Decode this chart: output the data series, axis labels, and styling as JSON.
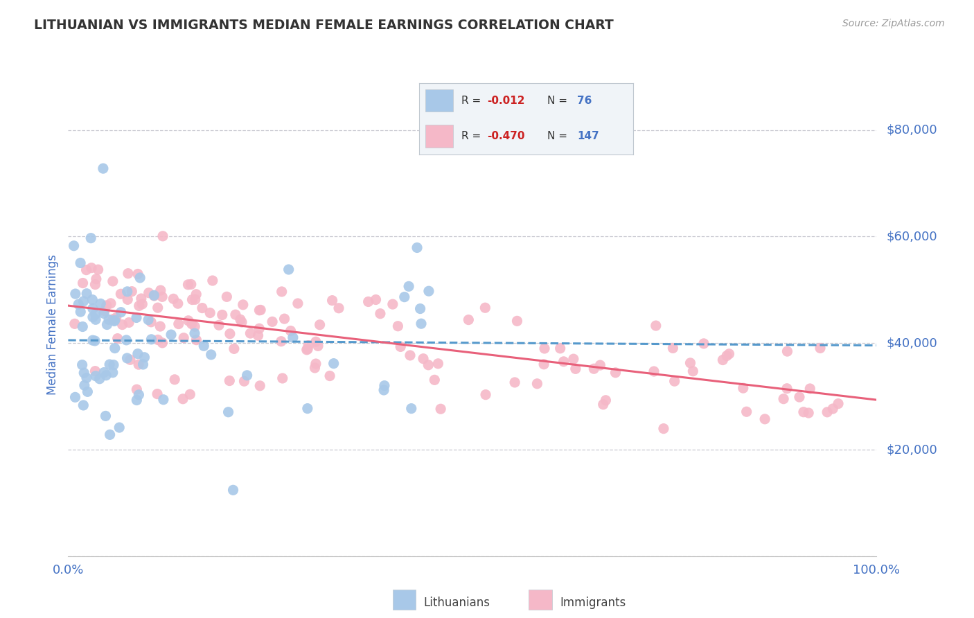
{
  "title": "LITHUANIAN VS IMMIGRANTS MEDIAN FEMALE EARNINGS CORRELATION CHART",
  "source_text": "Source: ZipAtlas.com",
  "ylabel": "Median Female Earnings",
  "xlim": [
    0.0,
    1.0
  ],
  "ylim": [
    0,
    87000
  ],
  "yticks": [
    0,
    20000,
    40000,
    60000,
    80000
  ],
  "ytick_labels": [
    "",
    "$20,000",
    "$40,000",
    "$60,000",
    "$80,000"
  ],
  "background_color": "#ffffff",
  "grid_color": "#c8c8d0",
  "title_color": "#333333",
  "axis_label_color": "#4472c4",
  "tick_label_color": "#4472c4",
  "legend_r1": "-0.012",
  "legend_n1": "76",
  "legend_r2": "-0.470",
  "legend_n2": "147",
  "series1_color": "#a8c8e8",
  "series2_color": "#f5b8c8",
  "trend1_color": "#5599cc",
  "trend2_color": "#e8607a",
  "series1_name": "Lithuanians",
  "series2_name": "Immigrants",
  "seed": 42,
  "legend_box_color": "#f0f4f8",
  "legend_box_edge": "#c0c8d0",
  "r_value_color": "#cc2222",
  "n_value_color": "#4472c4",
  "source_color": "#999999"
}
